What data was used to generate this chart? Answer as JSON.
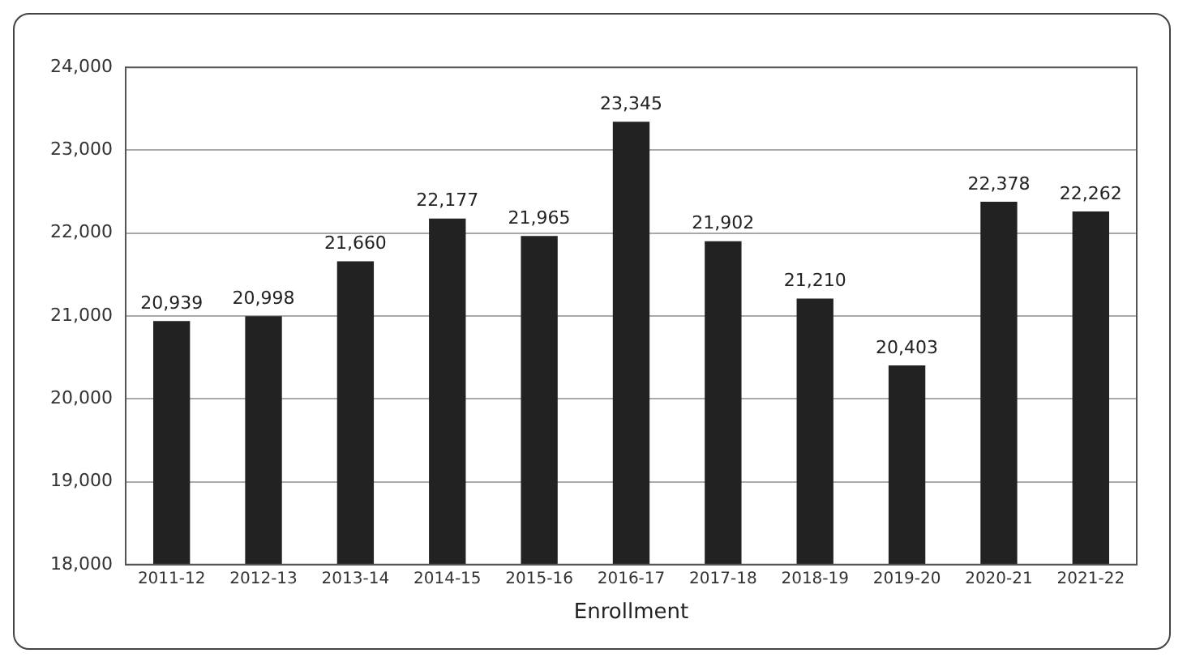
{
  "chart_data": {
    "type": "bar",
    "xlabel": "Enrollment",
    "categories": [
      "2011-12",
      "2012-13",
      "2013-14",
      "2014-15",
      "2015-16",
      "2016-17",
      "2017-18",
      "2018-19",
      "2019-20",
      "2020-21",
      "2021-22"
    ],
    "values": [
      20939,
      20998,
      21660,
      22177,
      21965,
      23345,
      21902,
      21210,
      20403,
      22378,
      22262
    ],
    "value_labels": [
      "20,939",
      "20,998",
      "21,660",
      "22,177",
      "21,965",
      "23,345",
      "21,902",
      "21,210",
      "20,403",
      "22,378",
      "22,262"
    ],
    "color": "#222222",
    "ylim": [
      18000,
      24000
    ],
    "yticks": [
      {
        "value": 18000,
        "label": "18,000"
      },
      {
        "value": 19000,
        "label": "19,000"
      },
      {
        "value": 20000,
        "label": "20,000"
      },
      {
        "value": 21000,
        "label": "21,000"
      },
      {
        "value": 22000,
        "label": "22,000"
      },
      {
        "value": 23000,
        "label": "23,000"
      },
      {
        "value": 24000,
        "label": "24,000"
      }
    ],
    "grid": "y"
  }
}
